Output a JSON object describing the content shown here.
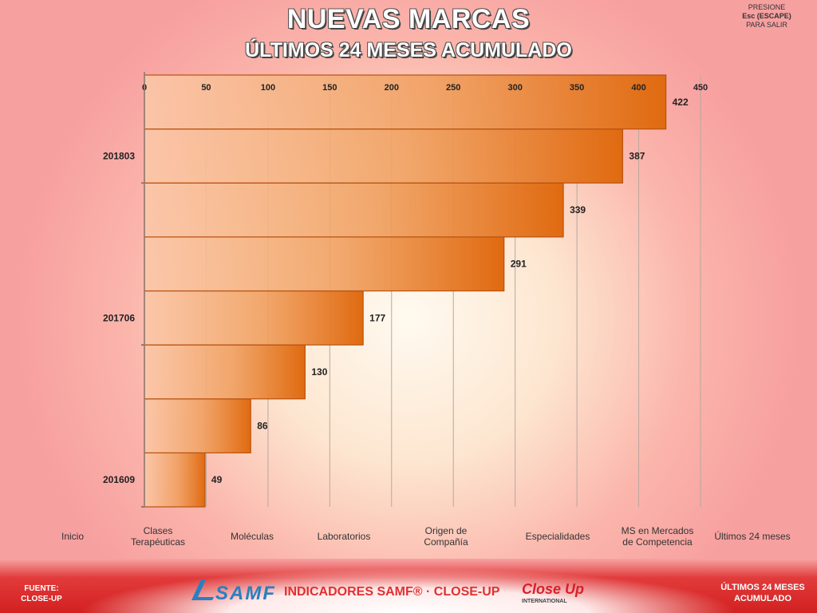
{
  "header": {
    "title": "NUEVAS MARCAS",
    "subtitle": "ÚLTIMOS 24 MESES ACUMULADO",
    "exit_hint": {
      "line1": "PRESIONE",
      "line2": "Esc (ESCAPE)",
      "line3": "PARA SALIR"
    }
  },
  "nav": {
    "items": [
      {
        "label": "Inicio"
      },
      {
        "label": "Clases\nTerapéuticas"
      },
      {
        "label": "Moléculas"
      },
      {
        "label": "Laboratorios"
      },
      {
        "label": "Origen de\nCompañía"
      },
      {
        "label": "Especialidades"
      },
      {
        "label": "MS en Mercados\nde Competencia"
      },
      {
        "label": "Últimos 24 meses"
      }
    ]
  },
  "footer": {
    "source_line1": "FUENTE:",
    "source_line2": "CLOSE-UP",
    "brand": "INDICADORES SAMF® · CLOSE-UP",
    "samf_logo": "SAMF",
    "closeup_logo": "Close Up",
    "closeup_sub": "INTERNATIONAL",
    "section_line1": "ÚLTIMOS 24 MESES",
    "section_line2": "ACUMULADO"
  },
  "chart_data": {
    "type": "bar",
    "orientation": "horizontal",
    "title": "NUEVAS MARCAS",
    "subtitle": "ÚLTIMOS 24 MESES ACUMULADO",
    "xlim": [
      0,
      450
    ],
    "x_ticks": [
      0,
      50,
      100,
      150,
      200,
      250,
      300,
      350,
      400,
      450
    ],
    "x_axis_position": "top",
    "grid": true,
    "y_tick_labels": [
      "201609",
      "201706",
      "201803"
    ],
    "values": [
      49,
      86,
      130,
      177,
      291,
      339,
      387,
      422
    ],
    "bar_color_start": "#fbc9a8",
    "bar_color_end": "#e06a10",
    "bar_border": "#b85210"
  }
}
